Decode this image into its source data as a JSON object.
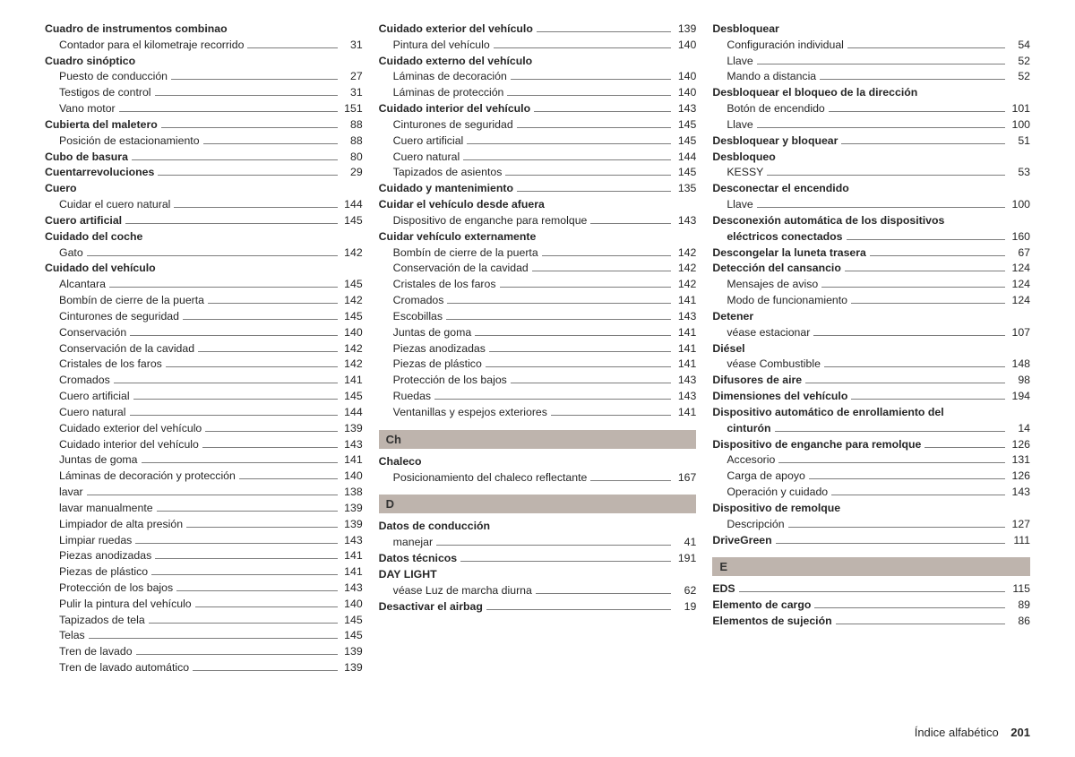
{
  "footer": {
    "label": "Índice alfabético",
    "page": "201"
  },
  "columns": [
    [
      {
        "t": "h",
        "label": "Cuadro de instrumentos combinao"
      },
      {
        "t": "s",
        "label": "Contador para el kilometraje recorrido",
        "page": "31"
      },
      {
        "t": "h",
        "label": "Cuadro sinóptico"
      },
      {
        "t": "s",
        "label": "Puesto de conducción",
        "page": "27"
      },
      {
        "t": "s",
        "label": "Testigos de control",
        "page": "31"
      },
      {
        "t": "s",
        "label": "Vano motor",
        "page": "151"
      },
      {
        "t": "hp",
        "label": "Cubierta del maletero",
        "page": "88"
      },
      {
        "t": "s",
        "label": "Posición de estacionamiento",
        "page": "88"
      },
      {
        "t": "hp",
        "label": "Cubo de basura",
        "page": "80"
      },
      {
        "t": "hp",
        "label": "Cuentarrevoluciones",
        "page": "29"
      },
      {
        "t": "h",
        "label": "Cuero"
      },
      {
        "t": "s",
        "label": "Cuidar el cuero natural",
        "page": "144"
      },
      {
        "t": "hp",
        "label": "Cuero artificial",
        "page": "145"
      },
      {
        "t": "h",
        "label": "Cuidado del coche"
      },
      {
        "t": "s",
        "label": "Gato",
        "page": "142"
      },
      {
        "t": "h",
        "label": "Cuidado del vehículo"
      },
      {
        "t": "s",
        "label": "Alcantara",
        "page": "145"
      },
      {
        "t": "s",
        "label": "Bombín de cierre de la puerta",
        "page": "142"
      },
      {
        "t": "s",
        "label": "Cinturones de seguridad",
        "page": "145"
      },
      {
        "t": "s",
        "label": "Conservación",
        "page": "140"
      },
      {
        "t": "s",
        "label": "Conservación de la cavidad",
        "page": "142"
      },
      {
        "t": "s",
        "label": "Cristales de los faros",
        "page": "142"
      },
      {
        "t": "s",
        "label": "Cromados",
        "page": "141"
      },
      {
        "t": "s",
        "label": "Cuero artificial",
        "page": "145"
      },
      {
        "t": "s",
        "label": "Cuero natural",
        "page": "144"
      },
      {
        "t": "s",
        "label": "Cuidado exterior del vehículo",
        "page": "139"
      },
      {
        "t": "s",
        "label": "Cuidado interior del vehículo",
        "page": "143"
      },
      {
        "t": "s",
        "label": "Juntas de goma",
        "page": "141"
      },
      {
        "t": "s",
        "label": "Láminas de decoración y protección",
        "page": "140"
      },
      {
        "t": "s",
        "label": "lavar",
        "page": "138"
      },
      {
        "t": "s",
        "label": "lavar manualmente",
        "page": "139"
      },
      {
        "t": "s",
        "label": "Limpiador de alta presión",
        "page": "139"
      },
      {
        "t": "s",
        "label": "Limpiar ruedas",
        "page": "143"
      },
      {
        "t": "s",
        "label": "Piezas anodizadas",
        "page": "141"
      },
      {
        "t": "s",
        "label": "Piezas de plástico",
        "page": "141"
      },
      {
        "t": "s",
        "label": "Protección de los bajos",
        "page": "143"
      },
      {
        "t": "s",
        "label": "Pulir la pintura del vehículo",
        "page": "140"
      },
      {
        "t": "s",
        "label": "Tapizados de tela",
        "page": "145"
      },
      {
        "t": "s",
        "label": "Telas",
        "page": "145"
      },
      {
        "t": "s",
        "label": "Tren de lavado",
        "page": "139"
      },
      {
        "t": "s",
        "label": "Tren de lavado automático",
        "page": "139"
      }
    ],
    [
      {
        "t": "hp",
        "label": "Cuidado exterior del vehículo",
        "page": "139"
      },
      {
        "t": "s",
        "label": "Pintura del vehículo",
        "page": "140"
      },
      {
        "t": "h",
        "label": "Cuidado externo del vehículo"
      },
      {
        "t": "s",
        "label": "Láminas de decoración",
        "page": "140"
      },
      {
        "t": "s",
        "label": "Láminas de protección",
        "page": "140"
      },
      {
        "t": "hp",
        "label": "Cuidado interior del vehículo",
        "page": "143"
      },
      {
        "t": "s",
        "label": "Cinturones de seguridad",
        "page": "145"
      },
      {
        "t": "s",
        "label": "Cuero artificial",
        "page": "145"
      },
      {
        "t": "s",
        "label": "Cuero natural",
        "page": "144"
      },
      {
        "t": "s",
        "label": "Tapizados de asientos",
        "page": "145"
      },
      {
        "t": "hp",
        "label": "Cuidado y mantenimiento",
        "page": "135"
      },
      {
        "t": "h",
        "label": "Cuidar el vehículo desde afuera"
      },
      {
        "t": "s",
        "label": "Dispositivo de enganche para remolque",
        "page": "143"
      },
      {
        "t": "h",
        "label": "Cuidar vehículo externamente"
      },
      {
        "t": "s",
        "label": "Bombín de cierre de la puerta",
        "page": "142"
      },
      {
        "t": "s",
        "label": "Conservación de la cavidad",
        "page": "142"
      },
      {
        "t": "s",
        "label": "Cristales de los faros",
        "page": "142"
      },
      {
        "t": "s",
        "label": "Cromados",
        "page": "141"
      },
      {
        "t": "s",
        "label": "Escobillas",
        "page": "143"
      },
      {
        "t": "s",
        "label": "Juntas de goma",
        "page": "141"
      },
      {
        "t": "s",
        "label": "Piezas anodizadas",
        "page": "141"
      },
      {
        "t": "s",
        "label": "Piezas de plástico",
        "page": "141"
      },
      {
        "t": "s",
        "label": "Protección de los bajos",
        "page": "143"
      },
      {
        "t": "s",
        "label": "Ruedas",
        "page": "143"
      },
      {
        "t": "s",
        "label": "Ventanillas y espejos exteriores",
        "page": "141"
      },
      {
        "t": "sec",
        "label": "Ch"
      },
      {
        "t": "h",
        "label": "Chaleco"
      },
      {
        "t": "s",
        "label": "Posicionamiento del chaleco reflectante",
        "page": "167"
      },
      {
        "t": "sec",
        "label": "D"
      },
      {
        "t": "h",
        "label": "Datos de conducción"
      },
      {
        "t": "s",
        "label": "manejar",
        "page": "41"
      },
      {
        "t": "hp",
        "label": "Datos técnicos",
        "page": "191"
      },
      {
        "t": "h",
        "label": "DAY LIGHT"
      },
      {
        "t": "s",
        "label": "véase Luz de marcha diurna",
        "page": "62"
      },
      {
        "t": "hp",
        "label": "Desactivar el airbag",
        "page": "19"
      }
    ],
    [
      {
        "t": "h",
        "label": "Desbloquear"
      },
      {
        "t": "s",
        "label": "Configuración individual",
        "page": "54"
      },
      {
        "t": "s",
        "label": "Llave",
        "page": "52"
      },
      {
        "t": "s",
        "label": "Mando a distancia",
        "page": "52"
      },
      {
        "t": "h",
        "label": "Desbloquear el bloqueo de la dirección"
      },
      {
        "t": "s",
        "label": "Botón de encendido",
        "page": "101"
      },
      {
        "t": "s",
        "label": "Llave",
        "page": "100"
      },
      {
        "t": "hp",
        "label": "Desbloquear y bloquear",
        "page": "51"
      },
      {
        "t": "h",
        "label": "Desbloqueo"
      },
      {
        "t": "s",
        "label": "KESSY",
        "page": "53"
      },
      {
        "t": "h",
        "label": "Desconectar el encendido"
      },
      {
        "t": "s",
        "label": "Llave",
        "page": "100"
      },
      {
        "t": "h",
        "label": "Desconexión automática de los dispositivos"
      },
      {
        "t": "sbp",
        "label": "eléctricos conectados",
        "page": "160"
      },
      {
        "t": "hp",
        "label": "Descongelar la luneta trasera",
        "page": "67"
      },
      {
        "t": "hp",
        "label": "Detección del cansancio",
        "page": "124"
      },
      {
        "t": "s",
        "label": "Mensajes de aviso",
        "page": "124"
      },
      {
        "t": "s",
        "label": "Modo de funcionamiento",
        "page": "124"
      },
      {
        "t": "h",
        "label": "Detener"
      },
      {
        "t": "s",
        "label": "véase estacionar",
        "page": "107"
      },
      {
        "t": "h",
        "label": "Diésel"
      },
      {
        "t": "s",
        "label": "véase Combustible",
        "page": "148"
      },
      {
        "t": "hp",
        "label": "Difusores de aire",
        "page": "98"
      },
      {
        "t": "hp",
        "label": "Dimensiones del vehículo",
        "page": "194"
      },
      {
        "t": "h",
        "label": "Dispositivo automático de enrollamiento del"
      },
      {
        "t": "sbp",
        "label": "cinturón",
        "page": "14"
      },
      {
        "t": "hp",
        "label": "Dispositivo de enganche para remolque",
        "page": "126"
      },
      {
        "t": "s",
        "label": "Accesorio",
        "page": "131"
      },
      {
        "t": "s",
        "label": "Carga de apoyo",
        "page": "126"
      },
      {
        "t": "s",
        "label": "Operación y cuidado",
        "page": "143"
      },
      {
        "t": "h",
        "label": "Dispositivo de remolque"
      },
      {
        "t": "s",
        "label": "Descripción",
        "page": "127"
      },
      {
        "t": "hp",
        "label": "DriveGreen",
        "page": "111"
      },
      {
        "t": "sec",
        "label": "E"
      },
      {
        "t": "hp",
        "label": "EDS",
        "page": "115"
      },
      {
        "t": "hp",
        "label": "Elemento de cargo",
        "page": "89"
      },
      {
        "t": "hp",
        "label": "Elementos de sujeción",
        "page": "86"
      }
    ]
  ]
}
